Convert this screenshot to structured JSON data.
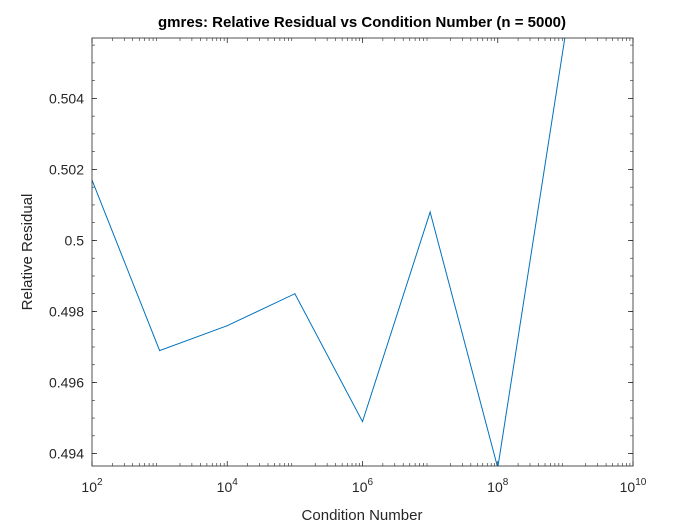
{
  "chart_data": {
    "type": "line",
    "title": "gmres: Relative Residual vs Condition Number (n = 5000)",
    "xlabel": "Condition Number",
    "ylabel": "Relative Residual",
    "xscale": "log",
    "xlim": [
      100,
      10000000000
    ],
    "ylim": [
      0.49365,
      0.5057
    ],
    "grid": false,
    "box": true,
    "x_ticks": [
      {
        "base": "10",
        "exp": "2"
      },
      {
        "base": "10",
        "exp": "4"
      },
      {
        "base": "10",
        "exp": "6"
      },
      {
        "base": "10",
        "exp": "8"
      },
      {
        "base": "10",
        "exp": "10"
      }
    ],
    "y_ticks": [
      "0.494",
      "0.496",
      "0.498",
      "0.5",
      "0.502",
      "0.504"
    ],
    "series": [
      {
        "color": "#0072BD",
        "x": [
          100,
          1000,
          10000,
          100000,
          1000000,
          10000000,
          100000000,
          1000000000
        ],
        "y": [
          0.5017,
          0.4969,
          0.4976,
          0.4985,
          0.4949,
          0.5008,
          0.4936,
          0.5058
        ]
      }
    ]
  },
  "colors": {
    "axis": "#262626",
    "line": "#0072BD"
  }
}
